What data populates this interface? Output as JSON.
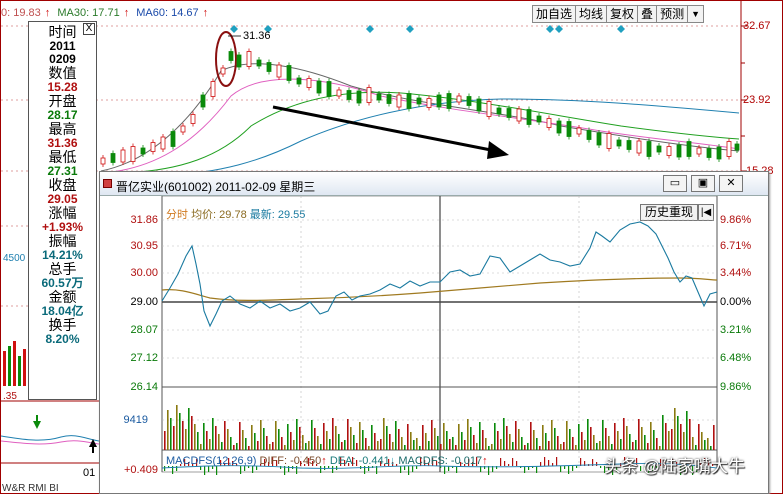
{
  "top_legend": {
    "ma20": "0: 19.83",
    "ma30": "MA30: 17.71",
    "ma60": "MA60: 14.67",
    "arrow": "↑"
  },
  "toolbar": {
    "buttons": [
      "加自选",
      "均线",
      "复权",
      "叠",
      "预测"
    ],
    "dropdown": "▼"
  },
  "price_scale": {
    "p1": "32.67",
    "p2": "23.92",
    "p3": "15.28"
  },
  "peak_label": "31.36",
  "info_panel": {
    "close_glyph": "X",
    "time_label": "时间",
    "date_year": "2011",
    "date_md": "0209",
    "count_label": "数值",
    "count_val": "15.28",
    "open_label": "开盘",
    "open_val": "28.17",
    "high_label": "最高",
    "high_val": "31.36",
    "low_label": "最低",
    "low_val": "27.31",
    "close_label": "收盘",
    "close_val": "29.05",
    "chg_label": "涨幅",
    "chg_val": "+1.93%",
    "amp_label": "振幅",
    "amp_val": "14.21%",
    "vol_label": "总手",
    "vol_val": "60.57万",
    "amt_label": "金额",
    "amt_val": "18.04亿",
    "turn_label": "换手",
    "turn_val": "8.20%"
  },
  "left_side": {
    "vol_label": "4500",
    "val_35": ".35",
    "val_01": "01",
    "tabs": "W&R  RMI  BI"
  },
  "intraday": {
    "title": "晋亿实业(601002) 2011-02-09 星期三",
    "btn_min": "▭",
    "btn_max": "▣",
    "btn_close": "✕",
    "legend_fenshi": "分时",
    "legend_avg": "均价: 29.78",
    "legend_last": "最新: 29.55",
    "history_btn": "历史重现",
    "history_arrow": "|◀",
    "y_left": [
      "31.86",
      "30.95",
      "30.00",
      "29.00",
      "28.07",
      "27.12",
      "26.14"
    ],
    "y_right": [
      "9.86%",
      "6.71%",
      "3.44%",
      "0.00%",
      "3.21%",
      "6.48%",
      "9.86%"
    ],
    "vol_label": "9419",
    "macd": {
      "a": "MACDFS(12,26,9)",
      "b": "DIFF: -0.450",
      "c": "DEA: -0.441",
      "d": "MACDFS: -0.017",
      "up": "↑",
      "down": "↓"
    }
  },
  "bottom_left_val": "+0.409",
  "watermark": "头条 @陆家嘴大牛",
  "colors": {
    "up_candle": "#d01010",
    "down_candle": "#0a8a0a",
    "price_line": "#1a7aa0",
    "avg_line": "#a07a20",
    "accent": "#b01010"
  }
}
